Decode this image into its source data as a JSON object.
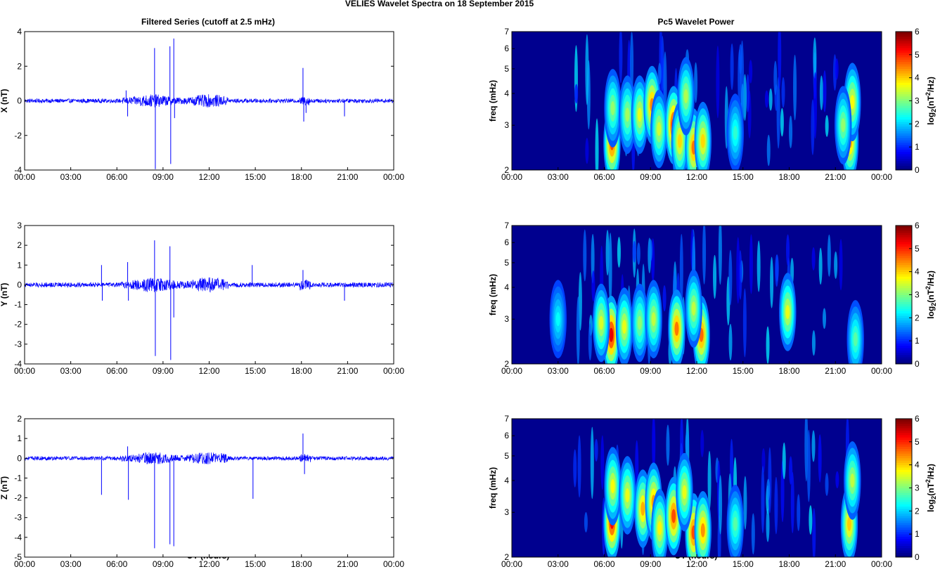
{
  "figure_title": "VELIES Wavelet Spectra on 18 September 2015",
  "left_column_title": "Filtered Series (cutoff at 2.5 mHz)",
  "right_column_title": "Pc5 Wavelet Power",
  "x_ticks": [
    "00:00",
    "03:00",
    "06:00",
    "09:00",
    "12:00",
    "15:00",
    "18:00",
    "21:00",
    "00:00"
  ],
  "x_label": "UT (hours)",
  "colors": {
    "trace": "#0000ff",
    "spectrogram_background": "#00008f",
    "axis": "#000000"
  },
  "chart_data": [
    {
      "type": "line",
      "ylabel": "X (nT)",
      "xlim": [
        0,
        24
      ],
      "ylim": [
        -4,
        4
      ],
      "yticks": [
        "4",
        "2",
        "0",
        "-2",
        "-4"
      ],
      "baseline_amplitude": 0.12,
      "spikes": [
        {
          "t": 6.6,
          "v": 0.6
        },
        {
          "t": 6.7,
          "v": -0.9
        },
        {
          "t": 8.45,
          "v": 3.05
        },
        {
          "t": 8.5,
          "v": -3.95
        },
        {
          "t": 9.45,
          "v": 3.15
        },
        {
          "t": 9.5,
          "v": -3.65
        },
        {
          "t": 9.7,
          "v": 3.6
        },
        {
          "t": 9.75,
          "v": -1.0
        },
        {
          "t": 18.1,
          "v": 1.9
        },
        {
          "t": 18.15,
          "v": -1.2
        },
        {
          "t": 18.3,
          "v": -0.7
        },
        {
          "t": 20.8,
          "v": -0.9
        }
      ]
    },
    {
      "type": "line",
      "ylabel": "Y (nT)",
      "xlim": [
        0,
        24
      ],
      "ylim": [
        -4,
        3
      ],
      "yticks": [
        "3",
        "2",
        "1",
        "0",
        "-1",
        "-2",
        "-3",
        "-4"
      ],
      "baseline_amplitude": 0.12,
      "spikes": [
        {
          "t": 5.0,
          "v": 1.0
        },
        {
          "t": 5.05,
          "v": -0.8
        },
        {
          "t": 6.7,
          "v": 1.15
        },
        {
          "t": 6.75,
          "v": -0.8
        },
        {
          "t": 8.45,
          "v": 2.25
        },
        {
          "t": 8.5,
          "v": -3.6
        },
        {
          "t": 9.45,
          "v": 1.95
        },
        {
          "t": 9.5,
          "v": -3.8
        },
        {
          "t": 9.7,
          "v": -1.65
        },
        {
          "t": 14.8,
          "v": 1.0
        },
        {
          "t": 18.1,
          "v": 0.75
        },
        {
          "t": 20.8,
          "v": -0.8
        }
      ]
    },
    {
      "type": "line",
      "ylabel": "Z (nT)",
      "xlim": [
        0,
        24
      ],
      "ylim": [
        -5,
        2
      ],
      "yticks": [
        "2",
        "1",
        "0",
        "-1",
        "-2",
        "-3",
        "-4",
        "-5"
      ],
      "baseline_amplitude": 0.1,
      "spikes": [
        {
          "t": 5.0,
          "v": -1.85
        },
        {
          "t": 6.7,
          "v": 0.6
        },
        {
          "t": 6.75,
          "v": -2.1
        },
        {
          "t": 8.45,
          "v": -4.55
        },
        {
          "t": 9.45,
          "v": -4.35
        },
        {
          "t": 9.7,
          "v": -4.45
        },
        {
          "t": 14.85,
          "v": -2.05
        },
        {
          "t": 18.1,
          "v": 1.25
        },
        {
          "t": 18.2,
          "v": -0.8
        }
      ]
    },
    {
      "type": "heatmap",
      "ylabel": "freq (mHz)",
      "y_scale": "log",
      "xlim": [
        0,
        24
      ],
      "ylim": [
        2,
        7
      ],
      "yticks": [
        "7",
        "6",
        "5",
        "4",
        "3",
        "2"
      ],
      "colorbar_label": "log2(nT2/Hz)",
      "colorbar_ticks": [
        "6",
        "5",
        "4",
        "3",
        "2",
        "1",
        "0"
      ],
      "clim": [
        0,
        6
      ],
      "blobs": [
        {
          "t": 6.5,
          "f": 2.55,
          "p": 4.6
        },
        {
          "t": 6.55,
          "f": 3.5,
          "p": 2.6
        },
        {
          "t": 7.5,
          "f": 3.3,
          "p": 2.7
        },
        {
          "t": 8.3,
          "f": 3.3,
          "p": 3.2
        },
        {
          "t": 9.1,
          "f": 3.6,
          "p": 4.2
        },
        {
          "t": 9.55,
          "f": 2.9,
          "p": 3.0
        },
        {
          "t": 10.5,
          "f": 3.0,
          "p": 5.0
        },
        {
          "t": 10.9,
          "f": 2.6,
          "p": 3.6
        },
        {
          "t": 11.8,
          "f": 2.45,
          "p": 4.3
        },
        {
          "t": 12.4,
          "f": 2.6,
          "p": 3.6
        },
        {
          "t": 11.3,
          "f": 3.9,
          "p": 2.8
        },
        {
          "t": 14.5,
          "f": 2.8,
          "p": 1.9
        },
        {
          "t": 21.95,
          "f": 2.6,
          "p": 4.0
        },
        {
          "t": 22.1,
          "f": 3.7,
          "p": 3.3
        },
        {
          "t": 21.5,
          "f": 3.0,
          "p": 2.6
        }
      ]
    },
    {
      "type": "heatmap",
      "ylabel": "freq (mHz)",
      "y_scale": "log",
      "xlim": [
        0,
        24
      ],
      "ylim": [
        2,
        7
      ],
      "yticks": [
        "7",
        "6",
        "5",
        "4",
        "3",
        "2"
      ],
      "colorbar_label": "log2(nT2/Hz)",
      "colorbar_ticks": [
        "6",
        "5",
        "4",
        "3",
        "2",
        "1",
        "0"
      ],
      "clim": [
        0,
        6
      ],
      "blobs": [
        {
          "t": 6.45,
          "f": 2.6,
          "p": 5.3
        },
        {
          "t": 5.8,
          "f": 2.9,
          "p": 3.1
        },
        {
          "t": 7.3,
          "f": 2.8,
          "p": 3.2
        },
        {
          "t": 8.3,
          "f": 2.9,
          "p": 2.6
        },
        {
          "t": 9.2,
          "f": 3.0,
          "p": 2.9
        },
        {
          "t": 10.7,
          "f": 2.75,
          "p": 4.3
        },
        {
          "t": 12.3,
          "f": 2.6,
          "p": 4.4
        },
        {
          "t": 11.8,
          "f": 3.3,
          "p": 2.9
        },
        {
          "t": 17.9,
          "f": 3.2,
          "p": 3.2
        },
        {
          "t": 3.0,
          "f": 3.0,
          "p": 1.6
        },
        {
          "t": 22.3,
          "f": 2.5,
          "p": 2.2
        }
      ]
    },
    {
      "type": "heatmap",
      "ylabel": "freq (mHz)",
      "y_scale": "log",
      "xlim": [
        0,
        24
      ],
      "ylim": [
        2,
        7
      ],
      "yticks": [
        "7",
        "6",
        "5",
        "4",
        "3",
        "2"
      ],
      "colorbar_label": "log2(nT2/Hz)",
      "colorbar_ticks": [
        "6",
        "5",
        "4",
        "3",
        "2",
        "1",
        "0"
      ],
      "clim": [
        0,
        6
      ],
      "blobs": [
        {
          "t": 6.5,
          "f": 2.75,
          "p": 5.1
        },
        {
          "t": 6.55,
          "f": 3.8,
          "p": 3.3
        },
        {
          "t": 7.5,
          "f": 3.5,
          "p": 3.2
        },
        {
          "t": 8.5,
          "f": 3.1,
          "p": 3.9
        },
        {
          "t": 9.2,
          "f": 3.3,
          "p": 4.0
        },
        {
          "t": 9.6,
          "f": 2.6,
          "p": 3.4
        },
        {
          "t": 10.5,
          "f": 2.9,
          "p": 4.6
        },
        {
          "t": 11.8,
          "f": 2.5,
          "p": 4.6
        },
        {
          "t": 12.4,
          "f": 2.55,
          "p": 4.1
        },
        {
          "t": 11.2,
          "f": 3.6,
          "p": 3.2
        },
        {
          "t": 14.5,
          "f": 2.7,
          "p": 2.2
        },
        {
          "t": 21.9,
          "f": 2.7,
          "p": 3.7
        },
        {
          "t": 22.1,
          "f": 4.0,
          "p": 2.9
        }
      ]
    }
  ]
}
